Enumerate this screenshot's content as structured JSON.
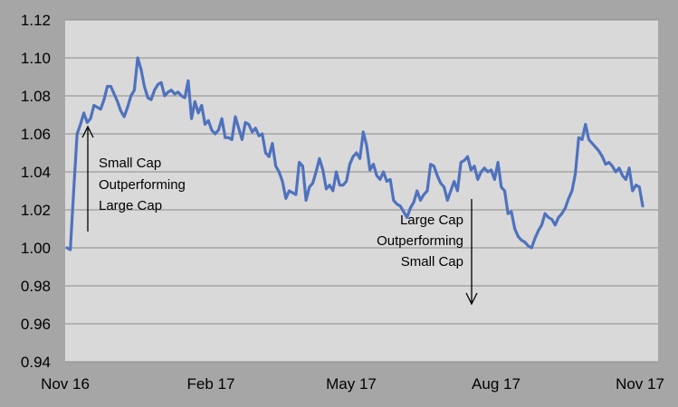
{
  "chart_data": {
    "type": "line",
    "title": "",
    "xlabel": "",
    "ylabel": "",
    "ylim": [
      0.94,
      1.12
    ],
    "yticks": [
      "0.94",
      "0.96",
      "0.98",
      "1.00",
      "1.02",
      "1.04",
      "1.06",
      "1.08",
      "1.10",
      "1.12"
    ],
    "x_tick_labels": [
      "Nov 16",
      "Feb 17",
      "May 17",
      "Aug 17",
      "Nov 17"
    ],
    "x_range": [
      "2016-11",
      "2017-11"
    ],
    "grid": "horizontal",
    "legend": "none",
    "background_color": "#a6a6a6",
    "plot_background_color": "#d9d9d9",
    "line_color": "#4f72be",
    "series": [
      {
        "values": [
          1.0,
          0.999,
          1.03,
          1.06,
          1.065,
          1.071,
          1.066,
          1.068,
          1.075,
          1.074,
          1.073,
          1.078,
          1.085,
          1.085,
          1.081,
          1.077,
          1.072,
          1.069,
          1.074,
          1.08,
          1.083,
          1.1,
          1.094,
          1.085,
          1.079,
          1.078,
          1.083,
          1.086,
          1.087,
          1.08,
          1.082,
          1.083,
          1.081,
          1.082,
          1.08,
          1.079,
          1.088,
          1.068,
          1.077,
          1.071,
          1.075,
          1.065,
          1.067,
          1.062,
          1.06,
          1.062,
          1.068,
          1.058,
          1.058,
          1.057,
          1.069,
          1.063,
          1.057,
          1.066,
          1.065,
          1.061,
          1.063,
          1.059,
          1.06,
          1.05,
          1.048,
          1.055,
          1.043,
          1.04,
          1.035,
          1.026,
          1.03,
          1.029,
          1.028,
          1.045,
          1.043,
          1.025,
          1.032,
          1.034,
          1.04,
          1.047,
          1.041,
          1.031,
          1.033,
          1.03,
          1.04,
          1.033,
          1.033,
          1.035,
          1.044,
          1.048,
          1.05,
          1.047,
          1.061,
          1.054,
          1.041,
          1.044,
          1.038,
          1.036,
          1.04,
          1.035,
          1.036,
          1.025,
          1.023,
          1.022,
          1.019,
          1.016,
          1.021,
          1.024,
          1.03,
          1.025,
          1.028,
          1.03,
          1.044,
          1.043,
          1.038,
          1.034,
          1.032,
          1.025,
          1.03,
          1.035,
          1.03,
          1.045,
          1.046,
          1.048,
          1.041,
          1.043,
          1.036,
          1.04,
          1.042,
          1.04,
          1.041,
          1.036,
          1.045,
          1.032,
          1.03,
          1.018,
          1.019,
          1.01,
          1.006,
          1.004,
          1.003,
          1.001,
          1.0,
          1.005,
          1.009,
          1.012,
          1.018,
          1.016,
          1.015,
          1.012,
          1.016,
          1.018,
          1.021,
          1.026,
          1.03,
          1.039,
          1.058,
          1.057,
          1.065,
          1.057,
          1.055,
          1.053,
          1.051,
          1.048,
          1.044,
          1.045,
          1.043,
          1.04,
          1.042,
          1.038,
          1.036,
          1.042,
          1.03,
          1.033,
          1.032,
          1.022
        ]
      }
    ],
    "annotations": [
      {
        "lines": [
          "Small Cap",
          "Outperforming",
          "Large Cap"
        ],
        "arrow": "up"
      },
      {
        "lines": [
          "Large Cap",
          "Outperforming",
          "Small Cap"
        ],
        "arrow": "down"
      }
    ]
  }
}
